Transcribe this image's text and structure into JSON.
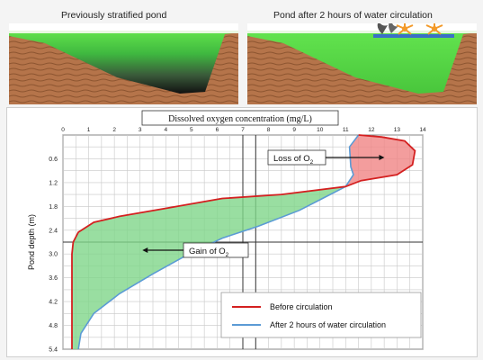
{
  "panels": {
    "left_title": "Previously stratified pond",
    "right_title": "Pond after 2 hours of water circulation"
  },
  "colors": {
    "water_surface": "#4ccc3a",
    "soil": "#b5744a",
    "before": "#d42020",
    "after": "#5b9bd5",
    "gain_fill": "#7fd68a",
    "loss_fill": "#f08484",
    "aerator": "#f39a2a"
  },
  "chart_data": {
    "type": "line",
    "title": "Dissolved oxygen concentration (mg/L)",
    "ylabel": "Pond depth (m)",
    "xlim": [
      0,
      14
    ],
    "ylim": [
      0,
      5.4
    ],
    "x_axis_position": "top",
    "y_inverted": true,
    "grid": true,
    "x_ticks": [
      0,
      1,
      2,
      3,
      4,
      5,
      6,
      7,
      8,
      9,
      10,
      11,
      12,
      13,
      14
    ],
    "y_ticks": [
      "0.6",
      "1.2",
      "1.8",
      "2.4",
      "3.0",
      "3.6",
      "4.2",
      "4.8",
      "5.4"
    ],
    "y_tick_values": [
      0.6,
      1.2,
      1.8,
      2.4,
      3.0,
      3.6,
      4.2,
      4.8,
      5.4
    ],
    "series": [
      {
        "name": "Before circulation",
        "points": [
          [
            11.5,
            0
          ],
          [
            12.4,
            0.05
          ],
          [
            13.3,
            0.15
          ],
          [
            13.7,
            0.4
          ],
          [
            13.6,
            0.75
          ],
          [
            13.0,
            1.0
          ],
          [
            11.6,
            1.15
          ],
          [
            11.0,
            1.3
          ],
          [
            8.5,
            1.5
          ],
          [
            6.2,
            1.6
          ],
          [
            4.0,
            1.85
          ],
          [
            2.2,
            2.05
          ],
          [
            1.2,
            2.2
          ],
          [
            0.6,
            2.45
          ],
          [
            0.4,
            2.7
          ],
          [
            0.35,
            3.0
          ],
          [
            0.35,
            4.0
          ],
          [
            0.35,
            5.4
          ]
        ]
      },
      {
        "name": "After 2 hours of water circulation",
        "points": [
          [
            11.5,
            0
          ],
          [
            11.15,
            0.3
          ],
          [
            11.2,
            0.8
          ],
          [
            11.3,
            1.0
          ],
          [
            11.0,
            1.3
          ],
          [
            10.1,
            1.6
          ],
          [
            9.2,
            1.9
          ],
          [
            7.6,
            2.3
          ],
          [
            6.2,
            2.6
          ],
          [
            4.9,
            3.0
          ],
          [
            3.5,
            3.5
          ],
          [
            2.2,
            4.0
          ],
          [
            1.2,
            4.5
          ],
          [
            0.7,
            5.0
          ],
          [
            0.6,
            5.4
          ]
        ]
      }
    ],
    "annotations": {
      "loss": "Loss of O",
      "gain": "Gain of O",
      "subscript": "2"
    }
  }
}
